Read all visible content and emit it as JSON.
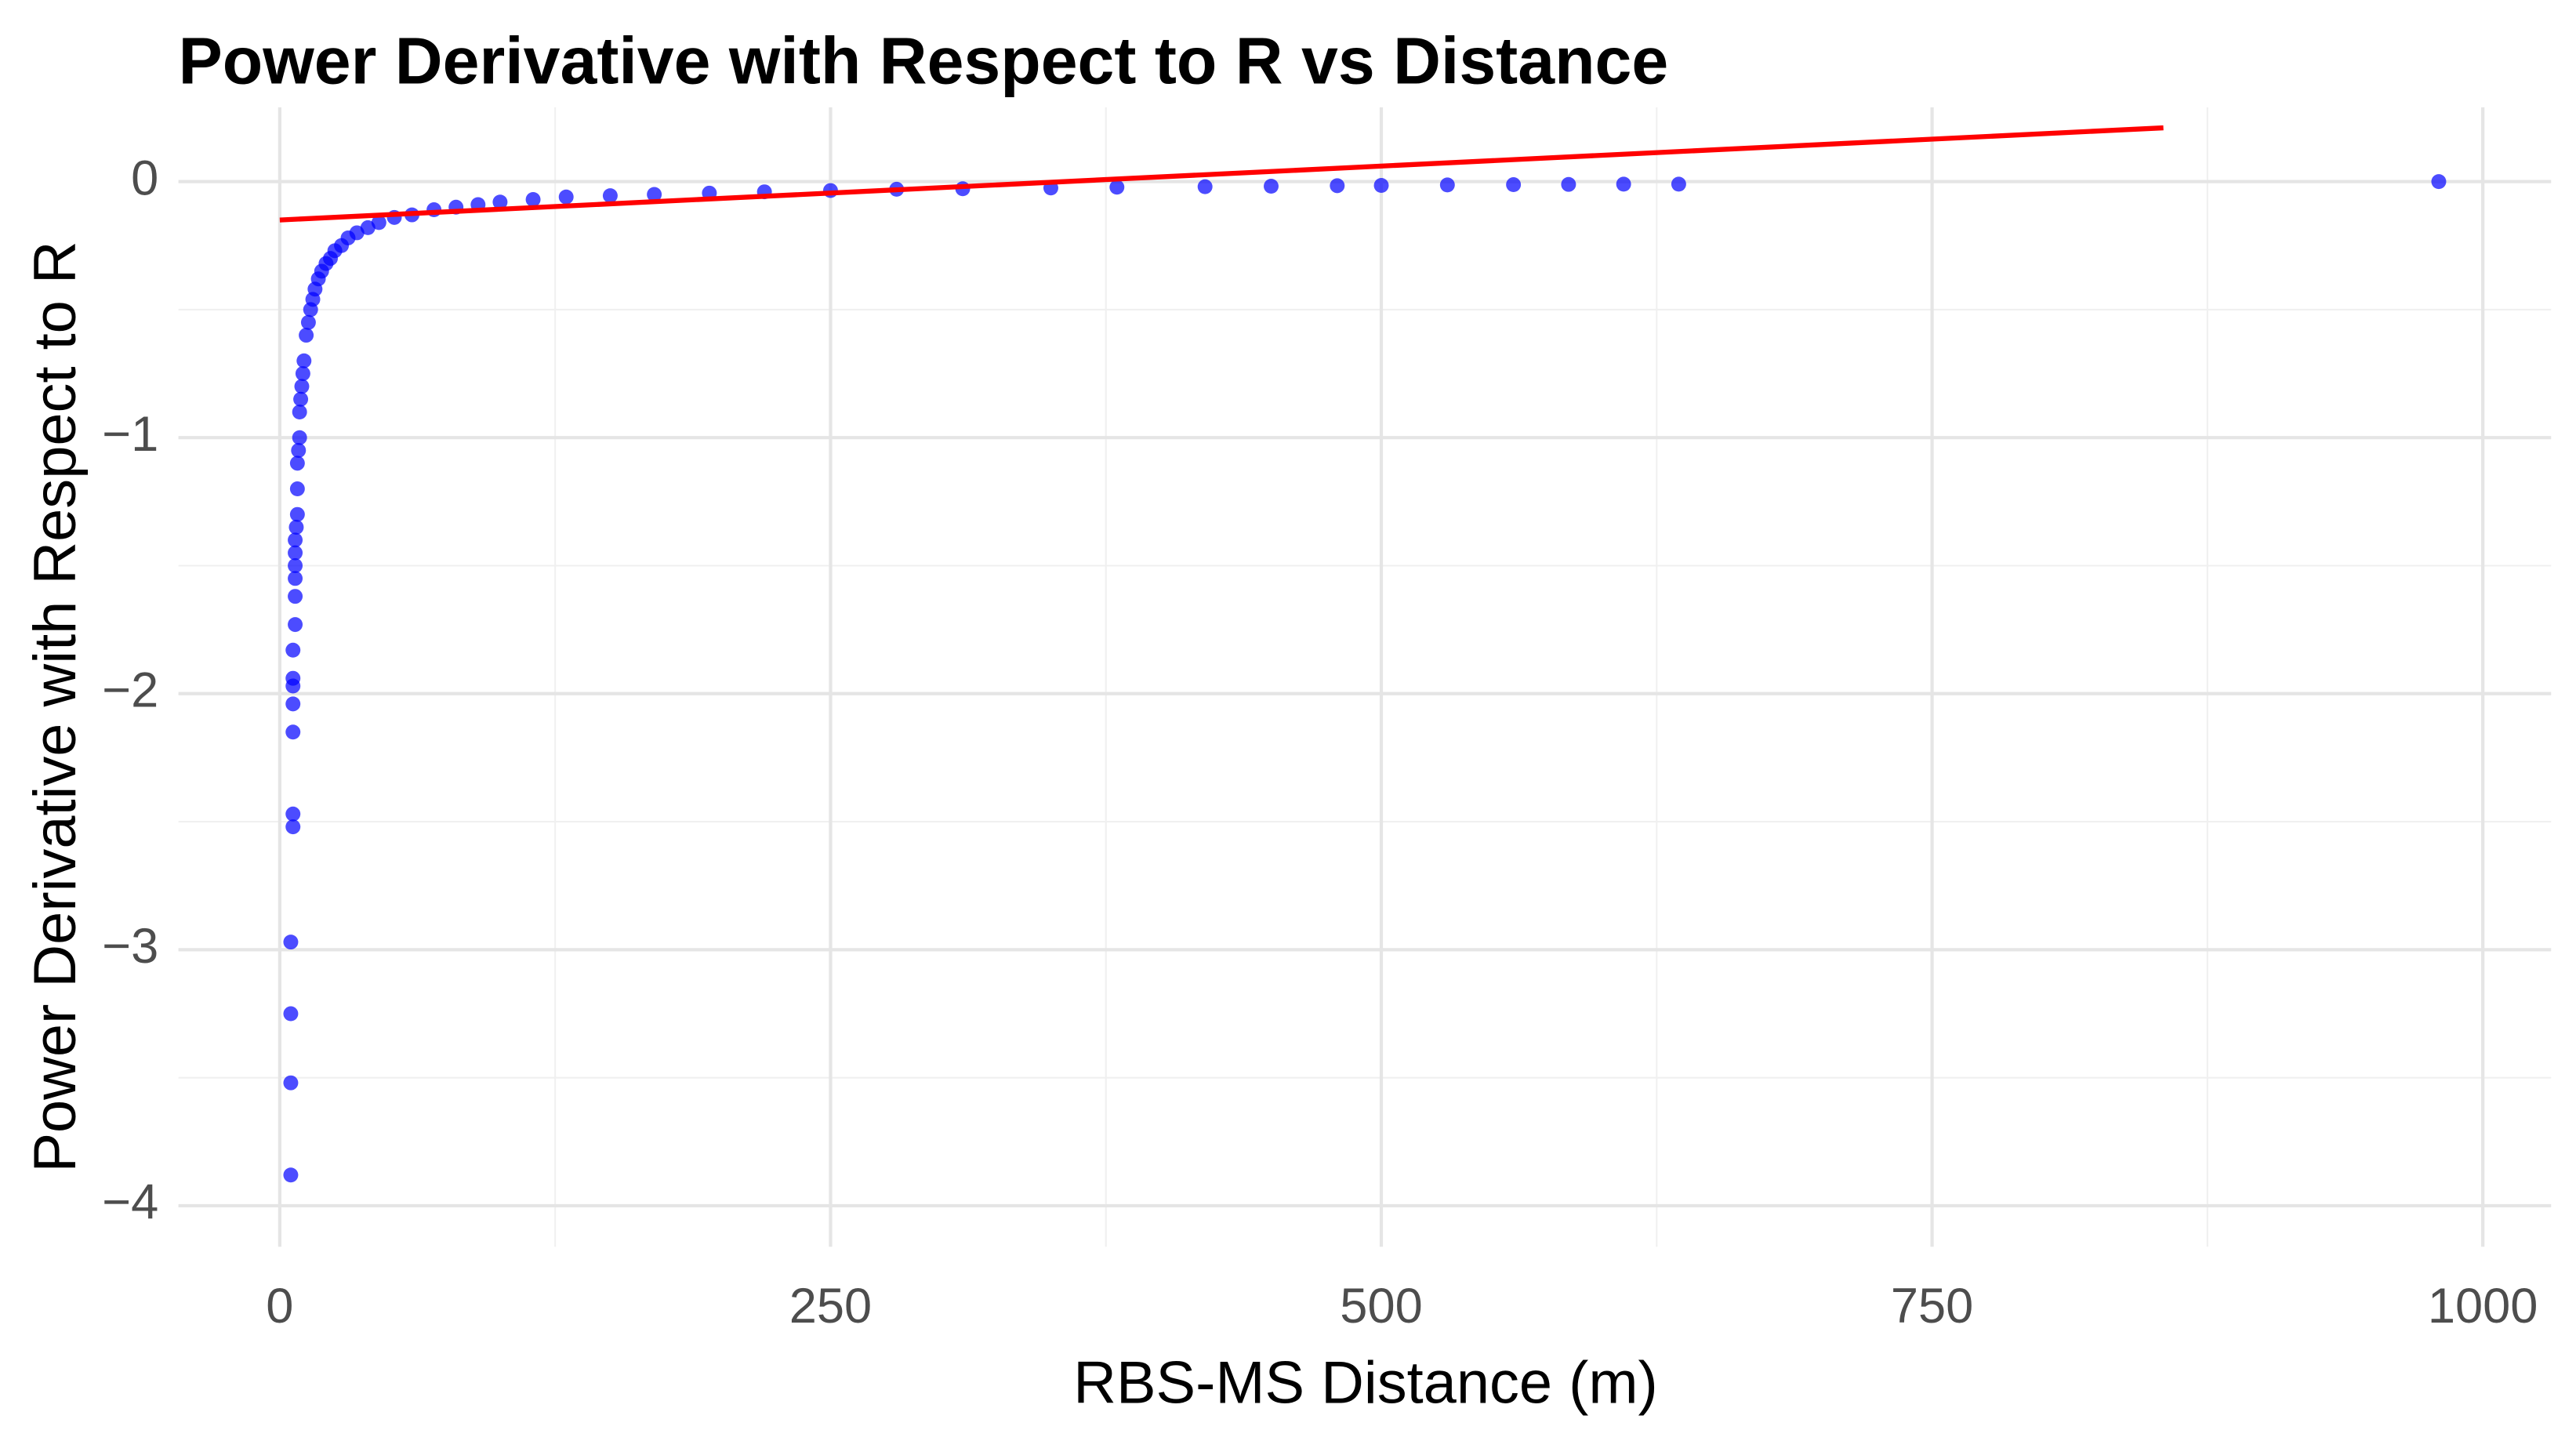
{
  "chart_data": {
    "type": "scatter",
    "title": "Power Derivative with Respect to R vs Distance",
    "x_label": "RBS-MS Distance (m)",
    "y_label": "Power Derivative with Respect to R",
    "xlim": [
      -46,
      1031
    ],
    "ylim": [
      -4.16,
      0.29
    ],
    "xticks": [
      0,
      250,
      500,
      750,
      1000
    ],
    "minor_xticks": [
      125,
      375,
      625,
      875
    ],
    "yticks": [
      {
        "value": -4,
        "label": "−4"
      },
      {
        "value": -3,
        "label": "−3"
      },
      {
        "value": -2,
        "label": "−2"
      },
      {
        "value": -1,
        "label": "−1"
      },
      0
    ],
    "minor_yticks": [
      -3.5,
      -2.5,
      -1.5,
      -0.5
    ],
    "grid": true,
    "points": {
      "color": "#0000ff",
      "x": [
        5,
        5,
        5,
        5,
        6,
        6,
        6,
        6,
        6,
        6,
        6,
        7,
        7,
        7,
        7,
        7,
        7,
        7.5,
        8,
        8,
        8,
        8.5,
        9,
        9,
        9.5,
        10,
        10.5,
        11,
        12,
        13,
        14,
        15,
        16,
        17.5,
        19,
        21,
        23,
        25,
        28,
        31,
        35,
        40,
        45,
        52,
        60,
        70,
        80,
        90,
        100,
        115,
        130,
        150,
        170,
        195,
        220,
        250,
        280,
        310,
        350,
        380,
        420,
        450,
        480,
        500,
        530,
        560,
        585,
        610,
        635,
        980
      ],
      "values": [
        -3.88,
        -3.52,
        -3.25,
        -2.97,
        -2.52,
        -2.47,
        -2.15,
        -2.04,
        -1.97,
        -1.94,
        -1.83,
        -1.73,
        -1.62,
        -1.55,
        -1.5,
        -1.45,
        -1.4,
        -1.35,
        -1.3,
        -1.2,
        -1.1,
        -1.05,
        -1.0,
        -0.9,
        -0.85,
        -0.8,
        -0.75,
        -0.7,
        -0.6,
        -0.55,
        -0.5,
        -0.46,
        -0.42,
        -0.38,
        -0.35,
        -0.32,
        -0.3,
        -0.27,
        -0.25,
        -0.22,
        -0.2,
        -0.18,
        -0.16,
        -0.14,
        -0.13,
        -0.11,
        -0.1,
        -0.09,
        -0.08,
        -0.07,
        -0.06,
        -0.055,
        -0.05,
        -0.045,
        -0.04,
        -0.035,
        -0.03,
        -0.028,
        -0.025,
        -0.022,
        -0.02,
        -0.018,
        -0.016,
        -0.015,
        -0.013,
        -0.012,
        -0.011,
        -0.01,
        -0.01,
        0.0
      ]
    },
    "trend": {
      "color": "#ff0000",
      "x": [
        0,
        855
      ],
      "values": [
        -0.15,
        0.21
      ]
    }
  }
}
